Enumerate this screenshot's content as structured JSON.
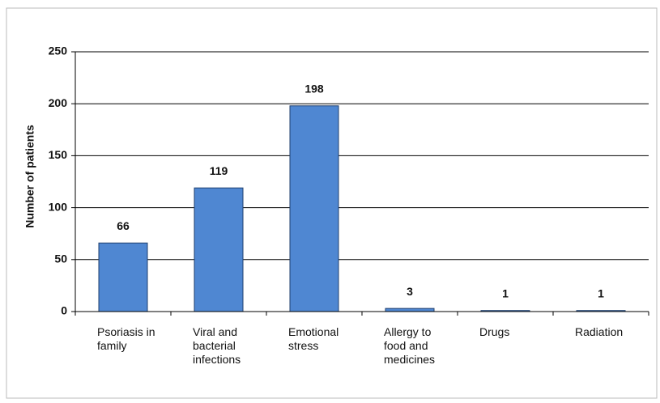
{
  "chart_data": {
    "type": "bar",
    "ylabel": "Number of patients",
    "categories": [
      "Psoriasis in family",
      "Viral and bacterial infections",
      "Emotional stress",
      "Allergy to food and medicines",
      "Drugs",
      "Radiation"
    ],
    "values": [
      66,
      119,
      198,
      3,
      1,
      1
    ],
    "color": "#4f87d2",
    "ylim": [
      0,
      250
    ],
    "yticks": [
      0,
      50,
      100,
      150,
      200,
      250
    ],
    "grid": true,
    "show_value_labels": true
  }
}
